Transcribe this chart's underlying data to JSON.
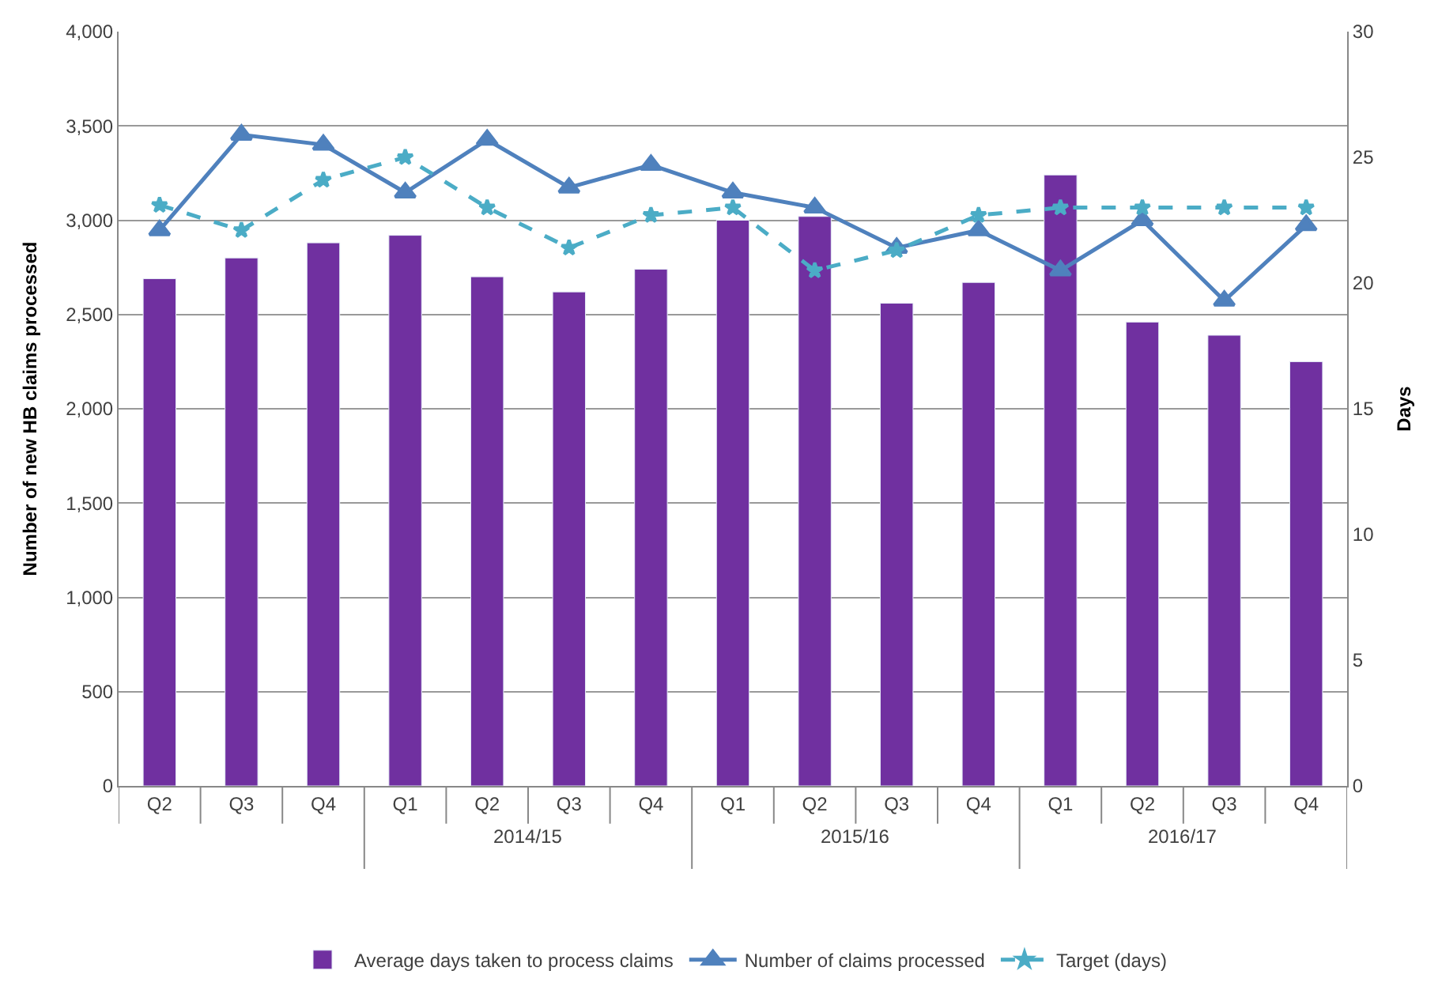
{
  "chart_data": {
    "type": "bar",
    "ylabel": "Number of new HB claims processed",
    "y2label": "Days",
    "categories": [
      "Q2",
      "Q3",
      "Q4",
      "Q1",
      "Q2",
      "Q3",
      "Q4",
      "Q1",
      "Q2",
      "Q3",
      "Q4",
      "Q1",
      "Q2",
      "Q3",
      "Q4"
    ],
    "annotations": [
      "2014/15",
      "2015/16",
      "2016/17"
    ],
    "series": [
      {
        "name": "Average days taken to process claims",
        "color": "#7030a0",
        "values": [
          2690,
          2800,
          2880,
          2920,
          2700,
          2620,
          2740,
          3000,
          3020,
          2560,
          2670,
          3240,
          2460,
          2390,
          2250
        ]
      },
      {
        "name": "Number of claims processed",
        "type": "line",
        "axis": "y2",
        "color": "#4f81bd",
        "marker": "triangle",
        "line_style": "solid",
        "values": [
          22.1,
          25.9,
          25.5,
          23.6,
          25.7,
          23.8,
          24.7,
          23.6,
          23.0,
          21.4,
          22.1,
          20.5,
          22.5,
          19.3,
          22.3
        ]
      },
      {
        "name": "Target (days)",
        "type": "line",
        "axis": "y2",
        "color": "#4bacc6",
        "marker": "star",
        "line_style": "dashed",
        "values": [
          23.1,
          22.1,
          24.1,
          25.0,
          23.0,
          21.4,
          22.7,
          23.0,
          20.5,
          21.3,
          22.7,
          23.0,
          23.0,
          23.0,
          23.0
        ]
      }
    ],
    "ylim": [
      0,
      4000
    ],
    "yticks": [
      {
        "value": 0,
        "label": "0"
      },
      {
        "value": 500,
        "label": "500"
      },
      {
        "value": 1000,
        "label": "1,000"
      },
      {
        "value": 1500,
        "label": "1,500"
      },
      {
        "value": 2000,
        "label": "2,000"
      },
      {
        "value": 2500,
        "label": "2,500"
      },
      {
        "value": 3000,
        "label": "3,000"
      },
      {
        "value": 3500,
        "label": "3,500"
      },
      {
        "value": 4000,
        "label": "4,000"
      }
    ],
    "y2lim": [
      0,
      30
    ],
    "y2ticks": [
      0,
      5,
      10,
      15,
      20,
      25,
      30
    ],
    "grid": "y",
    "legend": "bottom"
  }
}
